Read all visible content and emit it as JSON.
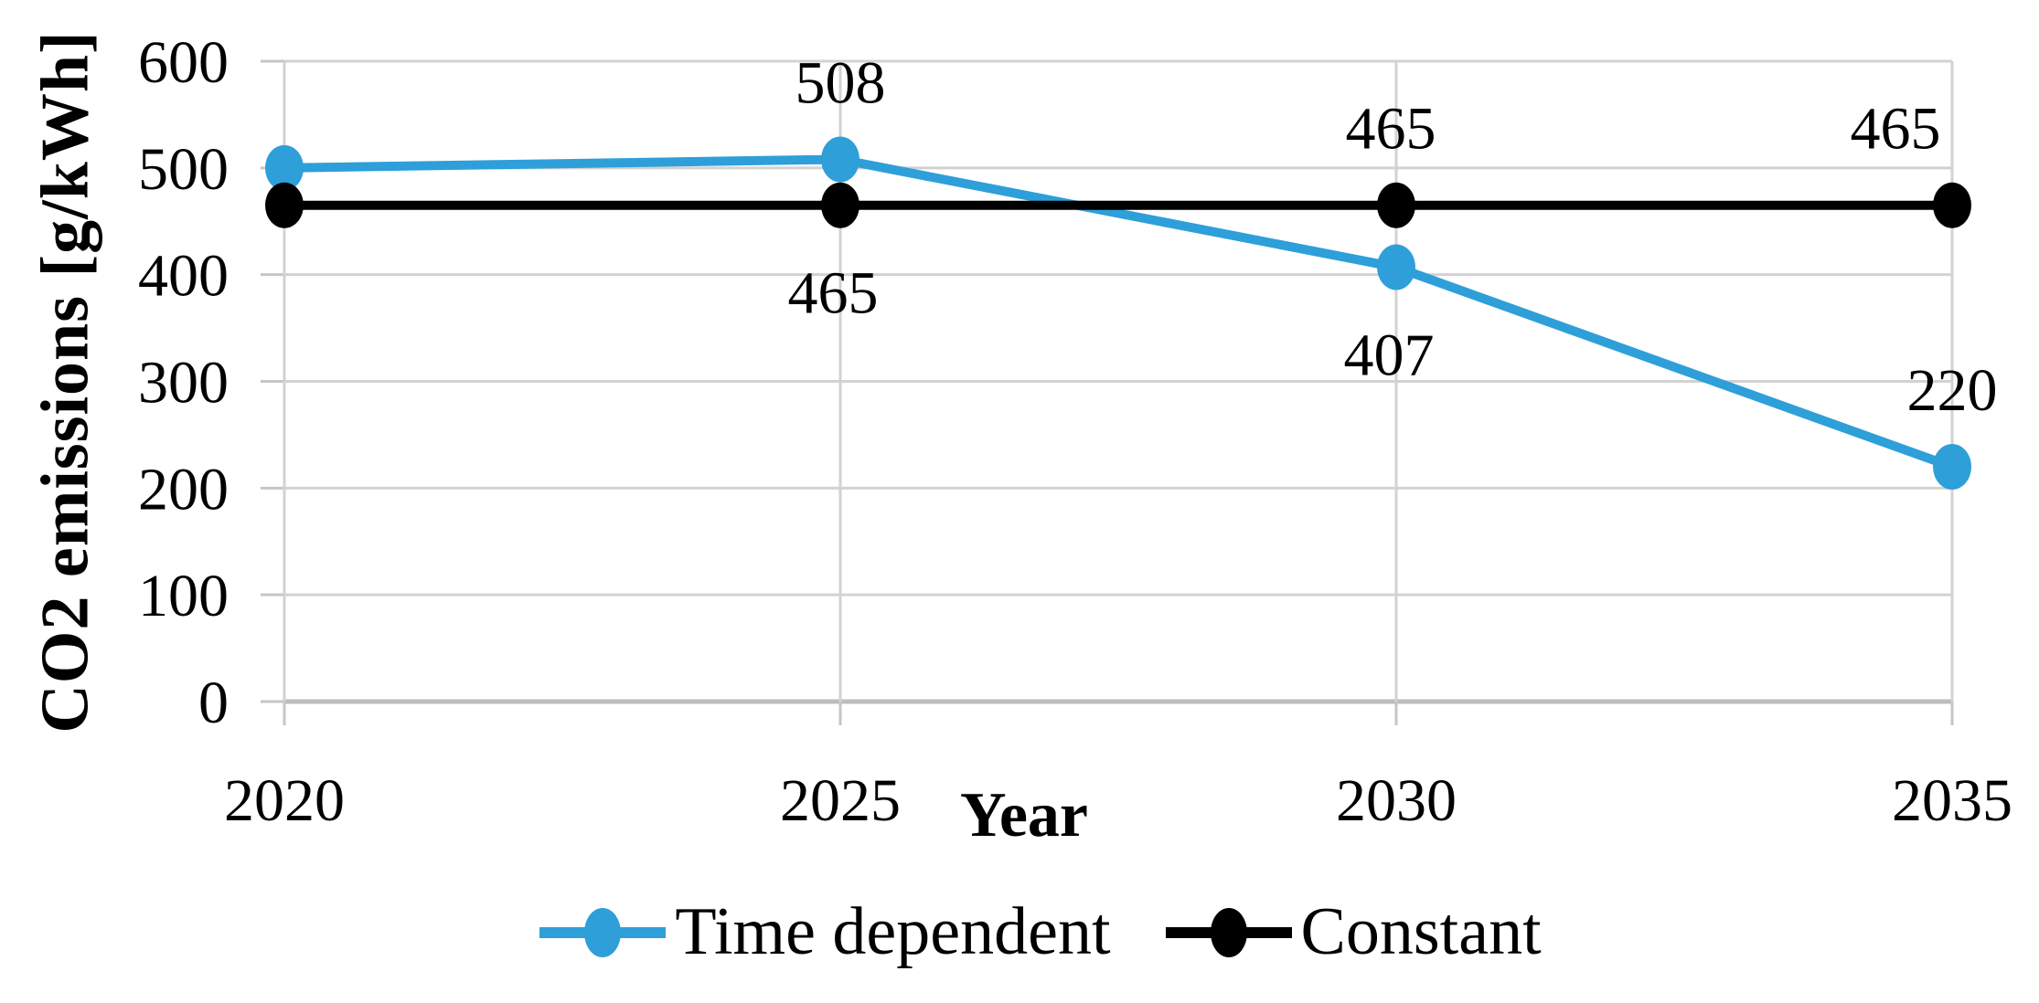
{
  "figure": {
    "y_axis_title": "CO2 emissions [g/kWh]",
    "x_axis_title": "Year"
  },
  "chart_data": {
    "type": "line",
    "title": "",
    "xlabel": "Year",
    "ylabel": "CO2 emissions [g/kWh]",
    "x_tick_labels": [
      "2020",
      "2025",
      "2030",
      "2035"
    ],
    "x": [
      2020,
      2025,
      2030,
      2035
    ],
    "ylim": [
      0,
      600
    ],
    "yticks": [
      0,
      100,
      200,
      300,
      400,
      500,
      600
    ],
    "grid": true,
    "legend_position": "bottom",
    "series": [
      {
        "name": "Time dependent",
        "color": "#2E9FD9",
        "marker": "circle",
        "values": [
          500,
          508,
          407,
          220
        ],
        "data_labels": [
          {
            "text": "",
            "position": "none"
          },
          {
            "text": "508",
            "position": "above",
            "dx": 0
          },
          {
            "text": "407",
            "position": "below",
            "dx": -8
          },
          {
            "text": "220",
            "position": "above",
            "dx": 0
          }
        ]
      },
      {
        "name": "Constant",
        "color": "#000000",
        "marker": "circle",
        "values": [
          465,
          465,
          465,
          465
        ],
        "data_labels": [
          {
            "text": "",
            "position": "none"
          },
          {
            "text": "465",
            "position": "below",
            "dx": -8
          },
          {
            "text": "465",
            "position": "above",
            "dx": -6
          },
          {
            "text": "465",
            "position": "above",
            "dx": -62
          }
        ]
      }
    ],
    "colors": {
      "gridline": "#D2D2D2",
      "zero_axis": "#BDBDBD",
      "tick_mark": "#C6C6C6",
      "text": "#000000",
      "background": "#FFFFFF"
    }
  }
}
